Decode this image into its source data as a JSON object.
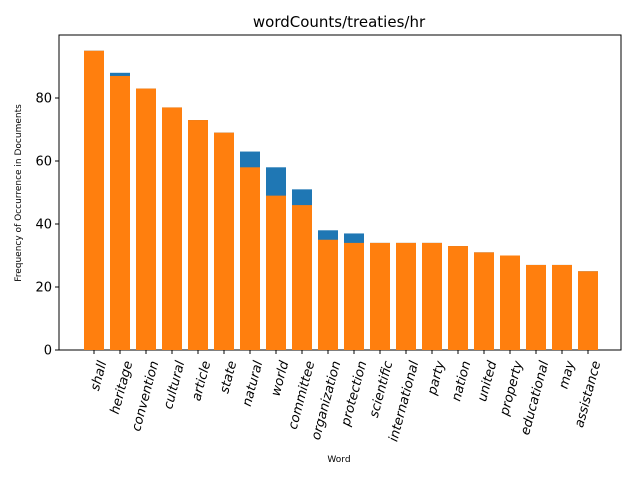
{
  "chart_data": {
    "type": "bar",
    "title": "wordCounts/treaties/hr",
    "xlabel": "Word",
    "ylabel": "Frequency of Occurrence in Documents",
    "ylim": [
      0,
      100
    ],
    "yticks": [
      0,
      20,
      40,
      60,
      80
    ],
    "categories": [
      "shall",
      "heritage",
      "convention",
      "cultural",
      "article",
      "state",
      "natural",
      "world",
      "committee",
      "organization",
      "protection",
      "scientific",
      "international",
      "party",
      "nation",
      "united",
      "property",
      "educational",
      "may",
      "assistance"
    ],
    "series": [
      {
        "color": "#1f77b4",
        "values": [
          95,
          88,
          83,
          77,
          73,
          69,
          63,
          58,
          51,
          38,
          37,
          34,
          34,
          34,
          33,
          31,
          30,
          27,
          27,
          25
        ]
      },
      {
        "color": "#ff7f0e",
        "values": [
          95,
          87,
          83,
          77,
          73,
          69,
          58,
          49,
          46,
          35,
          34,
          34,
          34,
          34,
          33,
          31,
          30,
          27,
          27,
          25
        ]
      }
    ],
    "grid": false,
    "legend": "none"
  }
}
